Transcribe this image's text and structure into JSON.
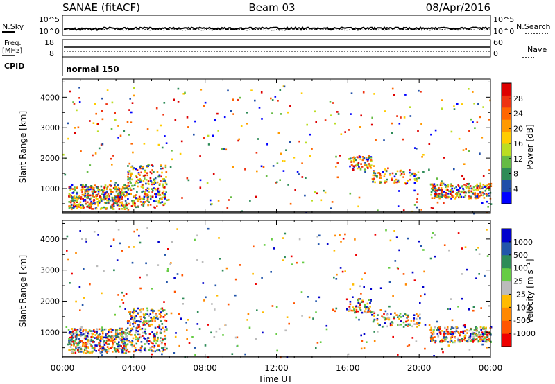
{
  "header": {
    "site": "SANAE (fitACF)",
    "beam": "Beam 03",
    "date": "08/Apr/2016"
  },
  "top_panels": {
    "nsky": {
      "label": "N.Sky",
      "ticks": [
        "10^5",
        "10^0"
      ]
    },
    "nsearch": {
      "label": "N.Search",
      "ticks": [
        "10^5",
        "10^0"
      ]
    },
    "freq": {
      "label_top": "Freq.",
      "label_bottom": "[MHz]",
      "ticks": [
        "18",
        "8"
      ]
    },
    "nave": {
      "label": "Nave",
      "ticks": [
        "60",
        "0"
      ]
    },
    "cpid": {
      "label": "CPID",
      "value": "normal 150"
    }
  },
  "colors": {
    "power": [
      "#0000ff",
      "#1f4ea8",
      "#2e8b57",
      "#66bb44",
      "#bbdd22",
      "#ffcc00",
      "#ff9900",
      "#ff6600",
      "#ee3311",
      "#dd0000"
    ],
    "velocity": [
      "#0000cc",
      "#2255aa",
      "#2e8b57",
      "#66cc44",
      "#bbbbbb",
      "#ffbb00",
      "#ff8800",
      "#ff5500",
      "#ee0000"
    ]
  },
  "chart_data": [
    {
      "type": "heatmap",
      "panel": "power",
      "ylabel": "Slant Range [km]",
      "xlim": [
        0,
        24
      ],
      "ylim": [
        180,
        4600
      ],
      "yticks": [
        "1000",
        "2000",
        "3000",
        "4000"
      ],
      "colorbar": {
        "label": "Power [dB]",
        "ticks": [
          "4",
          "8",
          "12",
          "16",
          "20",
          "24",
          "28"
        ],
        "range": [
          0,
          32
        ]
      },
      "scatter_regions": [
        {
          "t": [
            0.3,
            3.6
          ],
          "r": [
            350,
            1150
          ],
          "v": [
            14,
            30
          ],
          "density": 0.9
        },
        {
          "t": [
            3.6,
            5.8
          ],
          "r": [
            400,
            1800
          ],
          "v": [
            10,
            24
          ],
          "density": 0.5
        },
        {
          "t": [
            15.9,
            17.3
          ],
          "r": [
            1650,
            2100
          ],
          "v": [
            8,
            20
          ],
          "density": 0.6
        },
        {
          "t": [
            17.3,
            20.0
          ],
          "r": [
            1200,
            1650
          ],
          "v": [
            8,
            22
          ],
          "density": 0.4
        },
        {
          "t": [
            20.6,
            24.0
          ],
          "r": [
            700,
            1200
          ],
          "v": [
            10,
            26
          ],
          "density": 0.85
        },
        {
          "t": [
            0.0,
            24.0
          ],
          "r": [
            200,
            4400
          ],
          "v": [
            6,
            28
          ],
          "density": 0.02
        }
      ]
    },
    {
      "type": "heatmap",
      "panel": "velocity",
      "ylabel": "Slant Range [km]",
      "xlabel": "Time UT",
      "xlim": [
        0,
        24
      ],
      "ylim": [
        180,
        4600
      ],
      "yticks": [
        "1000",
        "2000",
        "3000",
        "4000"
      ],
      "xticks": [
        "00:00",
        "04:00",
        "08:00",
        "12:00",
        "16:00",
        "20:00",
        "00:00"
      ],
      "colorbar": {
        "label": "Velocity [m s⁻¹]",
        "ticks": [
          "1000",
          "500",
          "100",
          "25",
          "-25",
          "-100",
          "-500",
          "-1000"
        ]
      },
      "scatter_regions": [
        {
          "t": [
            0.3,
            3.6
          ],
          "r": [
            350,
            1150
          ],
          "v": [
            -500,
            500
          ],
          "density": 0.9
        },
        {
          "t": [
            3.6,
            5.8
          ],
          "r": [
            400,
            1800
          ],
          "v": [
            -500,
            200
          ],
          "density": 0.5
        },
        {
          "t": [
            15.9,
            17.3
          ],
          "r": [
            1650,
            2100
          ],
          "v": [
            -300,
            100
          ],
          "density": 0.6
        },
        {
          "t": [
            17.3,
            20.0
          ],
          "r": [
            1200,
            1650
          ],
          "v": [
            -200,
            200
          ],
          "density": 0.4
        },
        {
          "t": [
            20.6,
            24.0
          ],
          "r": [
            700,
            1200
          ],
          "v": [
            -800,
            300
          ],
          "density": 0.85
        },
        {
          "t": [
            0.0,
            24.0
          ],
          "r": [
            200,
            4400
          ],
          "v": [
            -500,
            500
          ],
          "density": 0.02
        }
      ]
    }
  ]
}
